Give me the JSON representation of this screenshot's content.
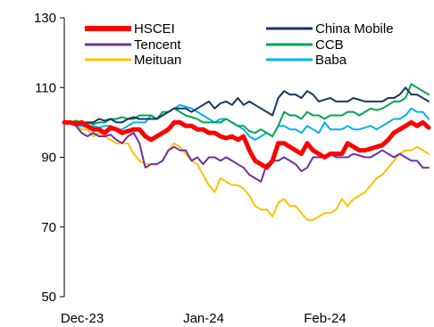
{
  "chart_data": {
    "type": "line",
    "title": "",
    "xlabel": "",
    "ylabel": "",
    "ylim": [
      50,
      130
    ],
    "yticks": [
      50,
      70,
      90,
      110,
      130
    ],
    "xlim": [
      0,
      63
    ],
    "xticks": [
      {
        "x": 0,
        "label": "Dec-23"
      },
      {
        "x": 21,
        "label": "Jan-24"
      },
      {
        "x": 42,
        "label": "Feb-24"
      }
    ],
    "grid": false,
    "legend_position": "top",
    "x": [
      0,
      1,
      2,
      3,
      4,
      5,
      6,
      7,
      8,
      9,
      10,
      11,
      12,
      13,
      14,
      15,
      16,
      17,
      18,
      19,
      20,
      21,
      22,
      23,
      24,
      25,
      26,
      27,
      28,
      29,
      30,
      31,
      32,
      33,
      34,
      35,
      36,
      37,
      38,
      39,
      40,
      41,
      42,
      43,
      44,
      45,
      46,
      47,
      48,
      49,
      50,
      51,
      52,
      53,
      54,
      55,
      56,
      57,
      58,
      59,
      60,
      61,
      62,
      63
    ],
    "series": [
      {
        "name": "HSCEI",
        "color": "#ff0000",
        "width": 5,
        "values": [
          100,
          100,
          99.5,
          100,
          99,
          98,
          98,
          97,
          98.5,
          98,
          97,
          97.5,
          98,
          98,
          96,
          95,
          96,
          97,
          98,
          100,
          100,
          99,
          99,
          98,
          98,
          97,
          97,
          96,
          95.5,
          96,
          95,
          96,
          92,
          89,
          88,
          87,
          89,
          94,
          94,
          93,
          92,
          91,
          94,
          92,
          91,
          90,
          91,
          91,
          91,
          94,
          93,
          92,
          92,
          92.5,
          93,
          93.5,
          95,
          97,
          98,
          99,
          100,
          99,
          100,
          98.5
        ]
      },
      {
        "name": "China Mobile",
        "color": "#17375e",
        "width": 2,
        "values": [
          100,
          100,
          100,
          99.5,
          100,
          100,
          101,
          100.5,
          101,
          100,
          100,
          101,
          101.5,
          101,
          101,
          101,
          101,
          102,
          103,
          104,
          104,
          104,
          103,
          104,
          105,
          106,
          104,
          105.5,
          106,
          105,
          107,
          105,
          106,
          105,
          104,
          103,
          102,
          107,
          109,
          108,
          108,
          107,
          109,
          108,
          106,
          106.5,
          107,
          106,
          106,
          106,
          107,
          106.5,
          106,
          106,
          106,
          106,
          107,
          107,
          108,
          110,
          108,
          108,
          107,
          106
        ]
      },
      {
        "name": "Tencent",
        "color": "#7030a0",
        "width": 2,
        "values": [
          100,
          100,
          99,
          97,
          96,
          97,
          96,
          96,
          96.5,
          95,
          94,
          96,
          97,
          94,
          87,
          88,
          88,
          89,
          92,
          93,
          92,
          92,
          89,
          90,
          88,
          90,
          90,
          89,
          90,
          89,
          88,
          87,
          85,
          84,
          83,
          88,
          89,
          89,
          90,
          89,
          88,
          86,
          87,
          90,
          90,
          90,
          91,
          90,
          90,
          90,
          91,
          90.5,
          90,
          90,
          91,
          92,
          91,
          90,
          91,
          90,
          89,
          89,
          87,
          87
        ]
      },
      {
        "name": "CCB",
        "color": "#00a650",
        "width": 2,
        "values": [
          100,
          100,
          100.5,
          100,
          100,
          99.5,
          100,
          100,
          101,
          101,
          101.5,
          101,
          101,
          102,
          102,
          102,
          101,
          103,
          103,
          104,
          103,
          102,
          101.5,
          101,
          100,
          100,
          100,
          100,
          101,
          100,
          99,
          99,
          97.5,
          97,
          98,
          97,
          96,
          99,
          103,
          102,
          102,
          101,
          103,
          102,
          102,
          101,
          102,
          102,
          102,
          103,
          103,
          102,
          103,
          104,
          103.5,
          104,
          105,
          106,
          106,
          107,
          111,
          110,
          109,
          108
        ]
      },
      {
        "name": "Meituan",
        "color": "#ffc000",
        "width": 2,
        "values": [
          100,
          100,
          99,
          98,
          98,
          96,
          97,
          96,
          95,
          94,
          94,
          94,
          91,
          89,
          88,
          88,
          88,
          89,
          92,
          94,
          93,
          91,
          89,
          88,
          85,
          82,
          80,
          84,
          83,
          82,
          82,
          81,
          79,
          76,
          75,
          75,
          73,
          77,
          78,
          76,
          76,
          74,
          72,
          72,
          73,
          74,
          74,
          75,
          78,
          76,
          78,
          79,
          80,
          82,
          84,
          85,
          87,
          89,
          91,
          92,
          92,
          93,
          92,
          91
        ]
      },
      {
        "name": "Baba",
        "color": "#00b0f0",
        "width": 2,
        "values": [
          100,
          100,
          99,
          99,
          98.5,
          99,
          98.5,
          99,
          99,
          98,
          98,
          99,
          100,
          100,
          100,
          102,
          101,
          102,
          103,
          104,
          105,
          104.5,
          104,
          103,
          102,
          101,
          100,
          101,
          101,
          100,
          99,
          98,
          96,
          95,
          96,
          97,
          96,
          99,
          99,
          98,
          98,
          97,
          99,
          98,
          97,
          100,
          98,
          98,
          98,
          99,
          98,
          98,
          98.5,
          99,
          98,
          99,
          100,
          101,
          101,
          102,
          104,
          103,
          103,
          101
        ]
      }
    ]
  }
}
